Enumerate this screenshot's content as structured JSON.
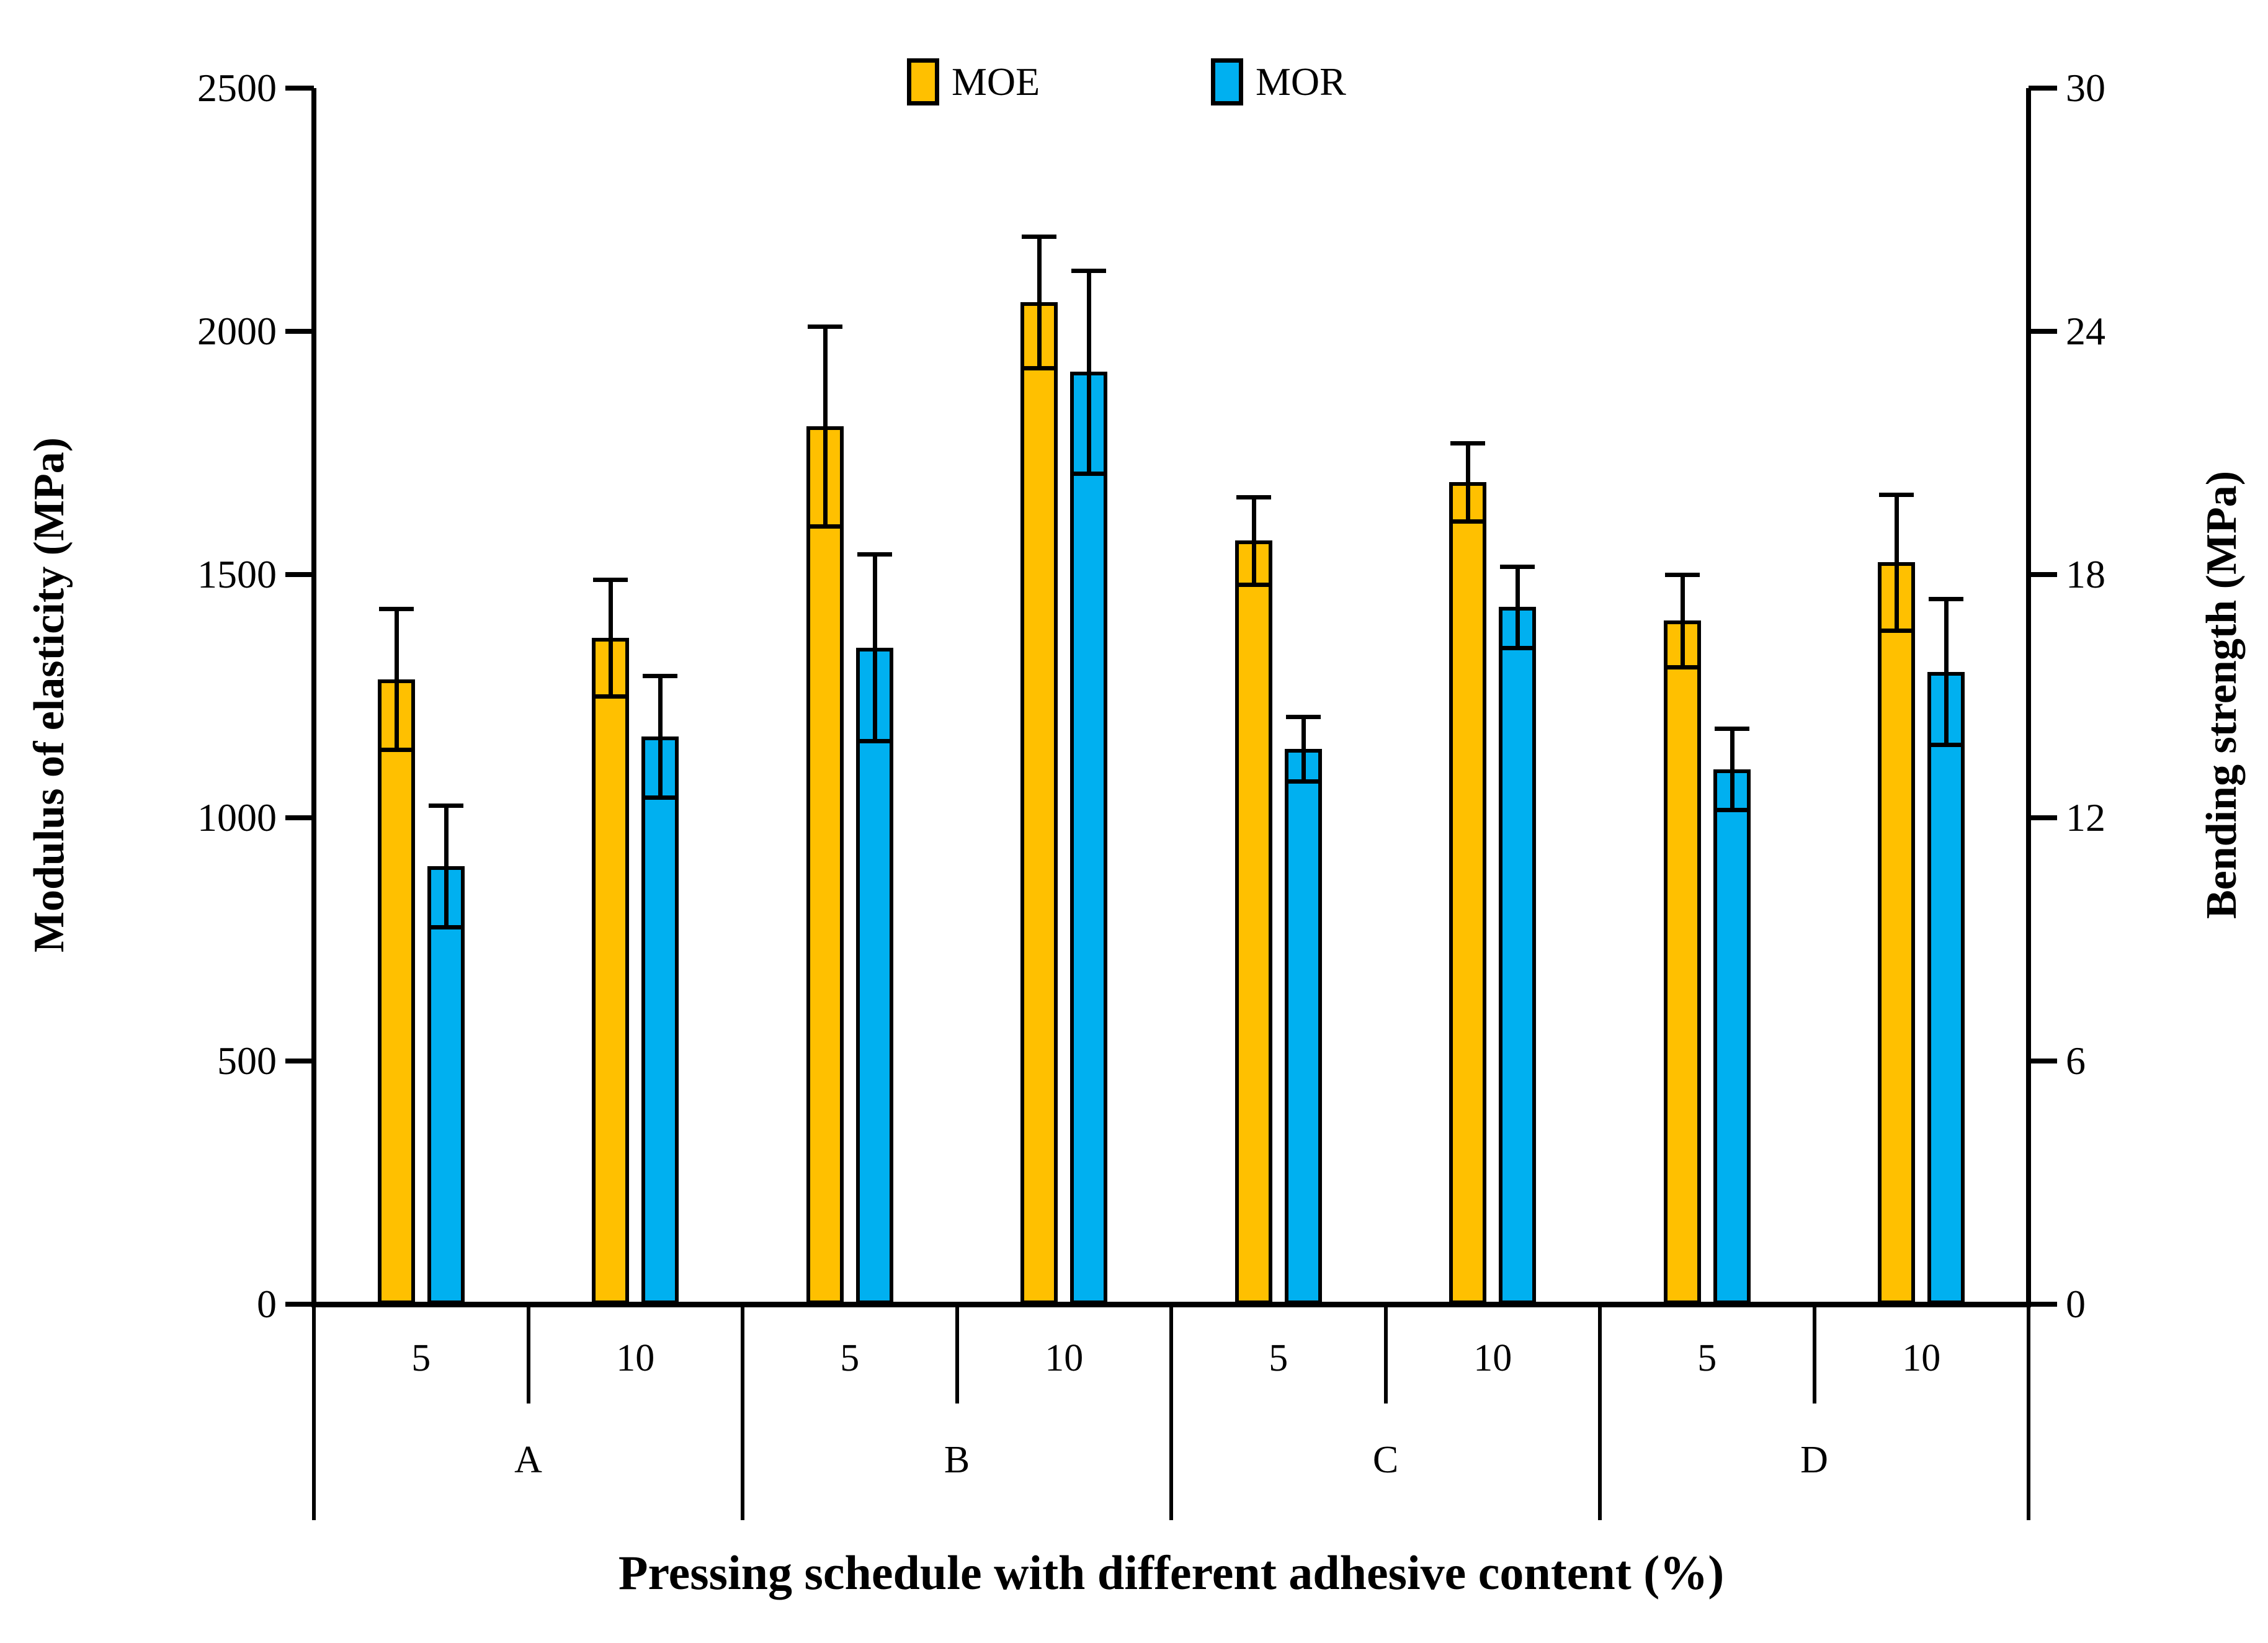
{
  "legend": {
    "items": [
      {
        "label": "MOE",
        "color": "#FFC000"
      },
      {
        "label": "MOR",
        "color": "#00B0F0"
      }
    ]
  },
  "chart_data": {
    "type": "bar",
    "xlabel": "Pressing schedule with different adhesive content (%)",
    "ylabel_left": "Modulus of elasticity (MPa)",
    "ylabel_right": "Bending strength (MPa)",
    "groups": [
      "A",
      "B",
      "C",
      "D"
    ],
    "adhesive_levels": [
      "5",
      "10"
    ],
    "categories": [
      "A-5",
      "A-10",
      "B-5",
      "B-10",
      "C-5",
      "C-10",
      "D-5",
      "D-10"
    ],
    "series": [
      {
        "name": "MOE",
        "axis": "left",
        "color": "#FFC000",
        "values": [
          1285,
          1370,
          1805,
          2060,
          1570,
          1690,
          1405,
          1525
        ],
        "errors": [
          145,
          120,
          205,
          135,
          90,
          80,
          95,
          140
        ]
      },
      {
        "name": "MOR",
        "axis": "right",
        "color": "#00B0F0",
        "values": [
          10.8,
          14.0,
          16.2,
          23.0,
          13.7,
          17.2,
          13.2,
          15.6
        ],
        "errors": [
          1.5,
          1.5,
          2.3,
          2.5,
          0.8,
          1.0,
          1.0,
          1.8
        ]
      }
    ],
    "left_axis": {
      "min": 0,
      "max": 2500,
      "ticks": [
        0,
        500,
        1000,
        1500,
        2000,
        2500
      ]
    },
    "right_axis": {
      "min": 0,
      "max": 30,
      "ticks": [
        0,
        6,
        12,
        18,
        24,
        30
      ]
    },
    "legend_position": "top-center",
    "grid": false,
    "error_bars": true
  }
}
